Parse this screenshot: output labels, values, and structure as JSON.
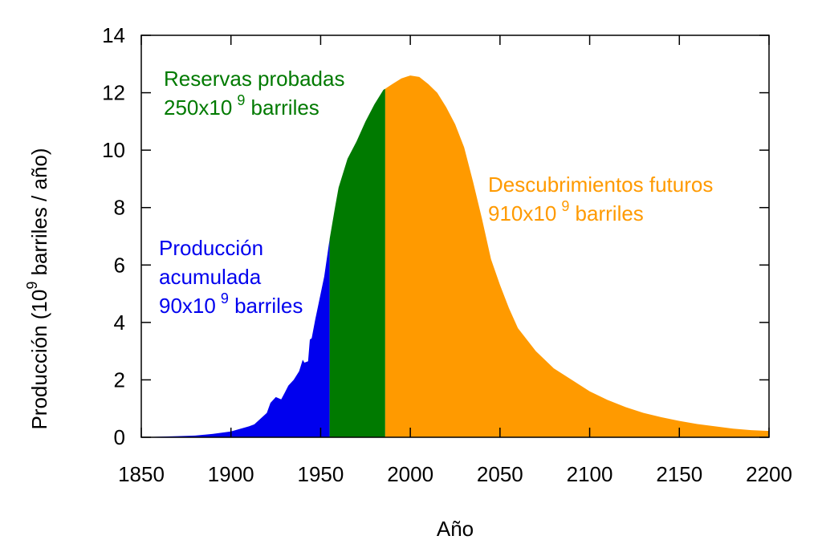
{
  "chart_data": {
    "type": "area",
    "xlabel": "Año",
    "ylabel": "Producción (10",
    "ylabel_exponent": "9",
    "ylabel_suffix": " barriles / año)",
    "xlim": [
      1850,
      2200
    ],
    "ylim": [
      0,
      14
    ],
    "x_ticks": [
      1850,
      1900,
      1950,
      2000,
      2050,
      2100,
      2150,
      2200
    ],
    "y_ticks": [
      0,
      2,
      4,
      6,
      8,
      10,
      12,
      14
    ],
    "grid": false,
    "curve": [
      [
        1850,
        0.0
      ],
      [
        1860,
        0.02
      ],
      [
        1870,
        0.04
      ],
      [
        1880,
        0.06
      ],
      [
        1890,
        0.12
      ],
      [
        1900,
        0.2
      ],
      [
        1910,
        0.38
      ],
      [
        1913,
        0.45
      ],
      [
        1920,
        0.85
      ],
      [
        1922,
        1.2
      ],
      [
        1925,
        1.4
      ],
      [
        1928,
        1.32
      ],
      [
        1930,
        1.55
      ],
      [
        1932,
        1.8
      ],
      [
        1935,
        2.0
      ],
      [
        1938,
        2.3
      ],
      [
        1940,
        2.7
      ],
      [
        1941,
        2.6
      ],
      [
        1943,
        2.65
      ],
      [
        1944,
        3.4
      ],
      [
        1945,
        3.45
      ],
      [
        1947,
        4.1
      ],
      [
        1949,
        4.7
      ],
      [
        1950,
        5.0
      ],
      [
        1952,
        5.6
      ],
      [
        1955,
        6.9
      ],
      [
        1958,
        8.0
      ],
      [
        1960,
        8.7
      ],
      [
        1965,
        9.7
      ],
      [
        1970,
        10.3
      ],
      [
        1975,
        11.0
      ],
      [
        1980,
        11.6
      ],
      [
        1985,
        12.1
      ],
      [
        1990,
        12.3
      ],
      [
        1995,
        12.5
      ],
      [
        2000,
        12.6
      ],
      [
        2005,
        12.55
      ],
      [
        2010,
        12.3
      ],
      [
        2015,
        12.0
      ],
      [
        2020,
        11.5
      ],
      [
        2025,
        10.9
      ],
      [
        2030,
        10.1
      ],
      [
        2035,
        8.9
      ],
      [
        2040,
        7.6
      ],
      [
        2045,
        6.2
      ],
      [
        2050,
        5.3
      ],
      [
        2055,
        4.5
      ],
      [
        2060,
        3.8
      ],
      [
        2070,
        3.0
      ],
      [
        2080,
        2.4
      ],
      [
        2090,
        2.0
      ],
      [
        2100,
        1.6
      ],
      [
        2110,
        1.3
      ],
      [
        2120,
        1.05
      ],
      [
        2130,
        0.85
      ],
      [
        2140,
        0.7
      ],
      [
        2150,
        0.57
      ],
      [
        2160,
        0.46
      ],
      [
        2170,
        0.38
      ],
      [
        2180,
        0.3
      ],
      [
        2190,
        0.25
      ],
      [
        2200,
        0.22
      ]
    ],
    "regions": [
      {
        "name": "Producción acumulada",
        "x_start": 1850,
        "x_end": 1955,
        "color": "#0000ee",
        "label_lines": [
          "Producción",
          "acumulada",
          "90x10"
        ],
        "exponent": "9",
        "label_suffix": " barriles",
        "placement": "left"
      },
      {
        "name": "Reservas probadas",
        "x_start": 1955,
        "x_end": 1986,
        "color": "#007a00",
        "label_lines": [
          "Reservas probadas",
          "250x10"
        ],
        "exponent": "9",
        "label_suffix": " barriles",
        "placement": "top"
      },
      {
        "name": "Descubrimientos futuros",
        "x_start": 1986,
        "x_end": 2200,
        "color": "#ff9a00",
        "label_lines": [
          "Descubrimientos futuros",
          "910x10"
        ],
        "exponent": "9",
        "label_suffix": " barriles",
        "placement": "right"
      }
    ]
  }
}
